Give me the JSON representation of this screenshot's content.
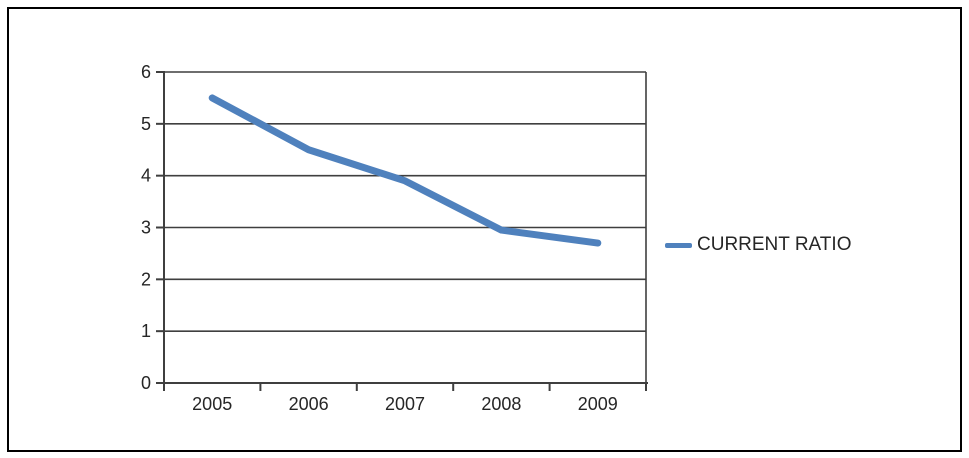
{
  "chart_data": {
    "type": "line",
    "title": "",
    "categories": [
      "2005",
      "2006",
      "2007",
      "2008",
      "2009"
    ],
    "series": [
      {
        "name": "CURRENT RATIO",
        "values": [
          5.5,
          4.5,
          3.9,
          2.95,
          2.7
        ],
        "color": "#4F81BD"
      }
    ],
    "xlabel": "",
    "ylabel": "",
    "ylim": [
      0,
      6
    ],
    "yticks": [
      0,
      1,
      2,
      3,
      4,
      5,
      6
    ],
    "grid": true,
    "legend_position": "right-middle",
    "colors": {
      "line": "#4F81BD",
      "gridline": "#3f3f3f",
      "axis": "#3f3f3f",
      "tick_text": "#262626",
      "legend_text": "#262626",
      "plot_background": "#ffffff",
      "page_border": "#000000"
    }
  }
}
